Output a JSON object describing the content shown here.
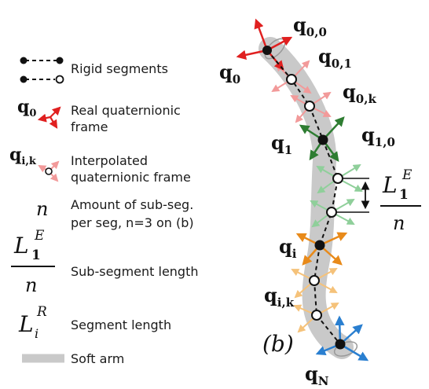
{
  "legend": {
    "rigid_segments": "Rigid segments",
    "real_frame": [
      "Real quaternionic",
      "frame"
    ],
    "interp_frame": [
      "Interpolated",
      "quaternionic frame"
    ],
    "amount": [
      "Amount of sub-seg.",
      "per seg, n=3 on (b)"
    ],
    "subseg_length": "Sub-segment length",
    "seg_length": "Segment length",
    "soft_arm": "Soft arm",
    "sym_q0": "q",
    "sym_q0_sub": "0",
    "sym_qik": "q",
    "sym_qik_sub": "i,k",
    "sym_n": "n",
    "sym_L": "L",
    "sym_L_sub1": "1",
    "sym_L_supE": "E",
    "sym_L_den": "n",
    "sym_Li_sub": "i",
    "sym_Li_supR": "R"
  },
  "labels": {
    "q00": "q",
    "q00_sub": "0,0",
    "q0": "q",
    "q0_sub": "0",
    "q01": "q",
    "q01_sub": "0,1",
    "q0k": "q",
    "q0k_sub": "0,k",
    "q1": "q",
    "q1_sub": "1",
    "q10": "q",
    "q10_sub": "1,0",
    "qi": "q",
    "qi_sub": "i",
    "qik": "q",
    "qik_sub": "i,k",
    "qN": "q",
    "qN_sub": "N",
    "panel": "(b)",
    "frac_L": "L",
    "frac_sub": "1",
    "frac_sup": "E",
    "frac_den": "n"
  },
  "colors": {
    "real": "#e02020",
    "interp": "#f29a9a",
    "green_real": "#2e7d32",
    "green_interp": "#8fcf9a",
    "orange_real": "#e88a1a",
    "orange_interp": "#f5c27a",
    "blue": "#2a7fd0",
    "soft_arm": "#c9c9c9"
  }
}
